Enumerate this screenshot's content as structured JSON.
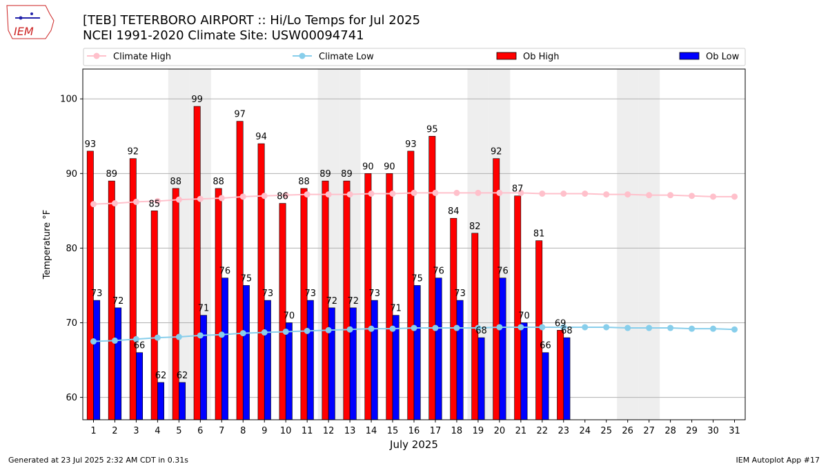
{
  "header": {
    "logo_text": "IEM",
    "title_line1": "[TEB] TETERBORO AIRPORT :: Hi/Lo Temps for Jul 2025",
    "title_line2": "NCEI 1991-2020 Climate Site: USW00094741"
  },
  "footer": {
    "left": "Generated at 23 Jul 2025 2:32 AM CDT in 0.31s",
    "right": "IEM Autoplot App #17"
  },
  "chart_data": {
    "type": "bar",
    "xlabel": "July 2025",
    "ylabel": "Temperature °F",
    "ylim": [
      57,
      104
    ],
    "yticks": [
      60,
      70,
      80,
      90,
      100
    ],
    "grid": "horizontal",
    "legend_position": "top",
    "categories": [
      "1",
      "2",
      "3",
      "4",
      "5",
      "6",
      "7",
      "8",
      "9",
      "10",
      "11",
      "12",
      "13",
      "14",
      "15",
      "16",
      "17",
      "18",
      "19",
      "20",
      "21",
      "22",
      "23",
      "24",
      "25",
      "26",
      "27",
      "28",
      "29",
      "30",
      "31"
    ],
    "weekend_days": [
      5,
      6,
      12,
      13,
      19,
      20,
      26,
      27
    ],
    "series": [
      {
        "name": "Ob High",
        "kind": "bar",
        "color": "#ff0000",
        "values": [
          93,
          89,
          92,
          85,
          88,
          99,
          88,
          97,
          94,
          86,
          88,
          89,
          89,
          90,
          90,
          93,
          95,
          84,
          82,
          92,
          87,
          81,
          69,
          null,
          null,
          null,
          null,
          null,
          null,
          null,
          null
        ]
      },
      {
        "name": "Ob Low",
        "kind": "bar",
        "color": "#0000ff",
        "values": [
          73,
          72,
          66,
          62,
          62,
          71,
          76,
          75,
          73,
          70,
          73,
          72,
          72,
          73,
          71,
          75,
          76,
          73,
          68,
          76,
          70,
          66,
          68,
          null,
          null,
          null,
          null,
          null,
          null,
          null,
          null
        ]
      },
      {
        "name": "Climate High",
        "kind": "line",
        "color": "#ffc0cb",
        "values": [
          85.9,
          86.0,
          86.2,
          86.3,
          86.5,
          86.6,
          86.7,
          86.9,
          87.0,
          87.1,
          87.2,
          87.2,
          87.2,
          87.3,
          87.3,
          87.4,
          87.4,
          87.4,
          87.4,
          87.4,
          87.4,
          87.3,
          87.3,
          87.3,
          87.2,
          87.2,
          87.1,
          87.1,
          87.0,
          86.9,
          86.9
        ]
      },
      {
        "name": "Climate Low",
        "kind": "line",
        "color": "#87ceeb",
        "values": [
          67.5,
          67.6,
          67.8,
          68.0,
          68.1,
          68.3,
          68.4,
          68.6,
          68.7,
          68.8,
          68.9,
          69.0,
          69.1,
          69.2,
          69.2,
          69.3,
          69.3,
          69.3,
          69.3,
          69.4,
          69.4,
          69.4,
          69.4,
          69.4,
          69.4,
          69.3,
          69.3,
          69.3,
          69.2,
          69.2,
          69.1
        ]
      }
    ]
  }
}
